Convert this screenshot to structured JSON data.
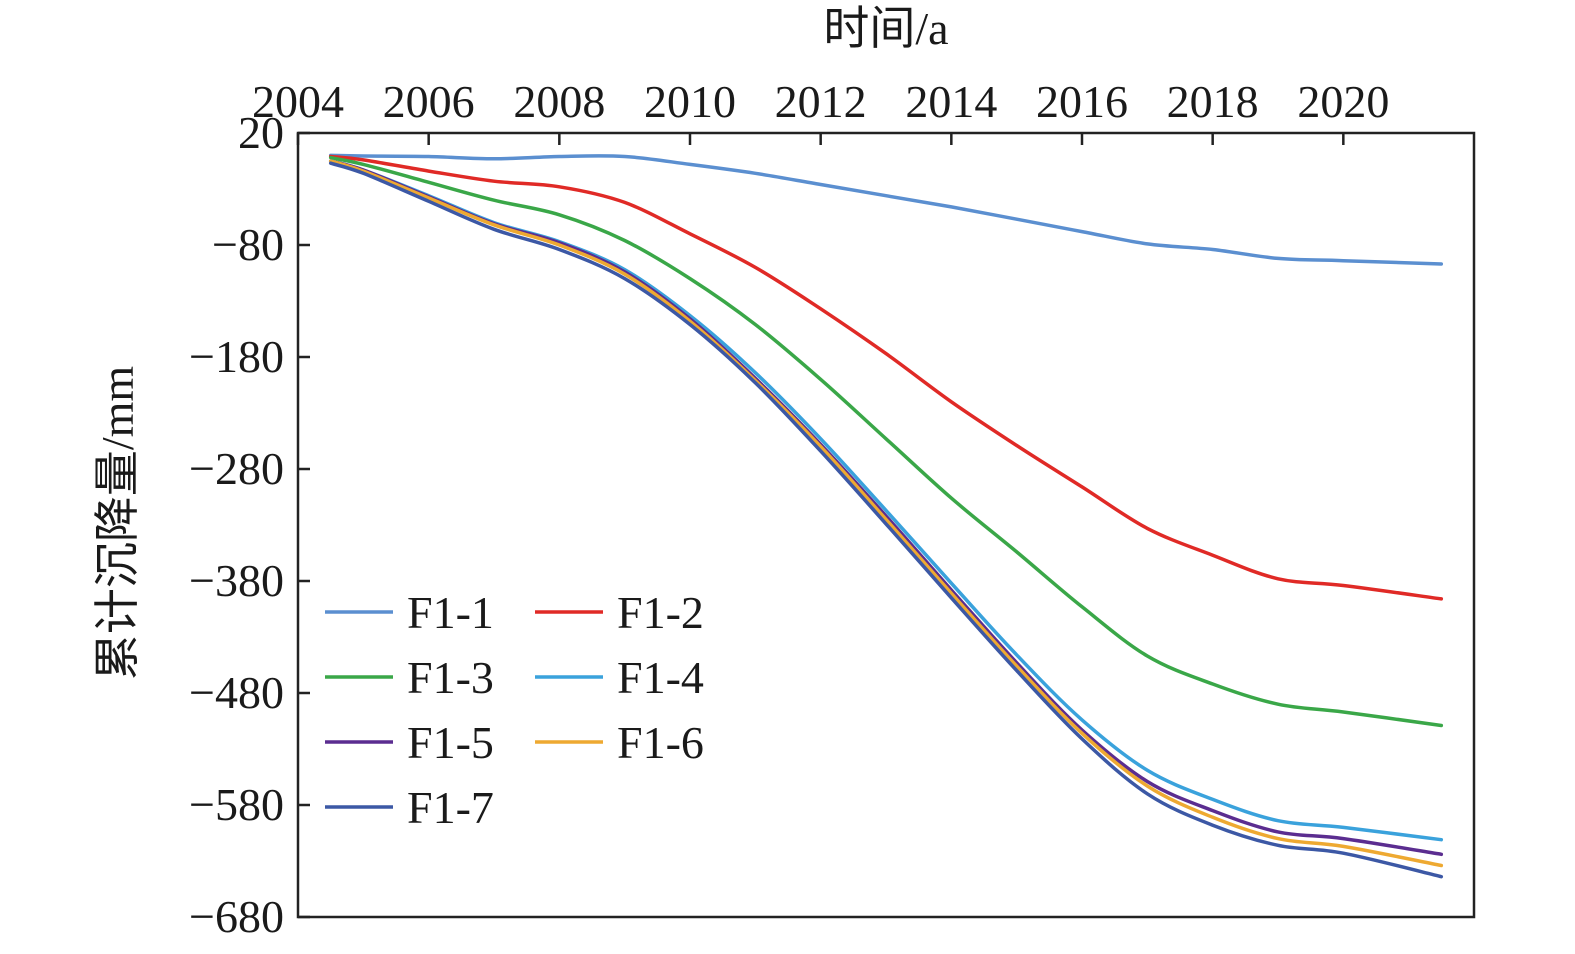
{
  "chart_data": {
    "type": "line",
    "xlabel": "时间/a",
    "ylabel": "累计沉降量/mm",
    "xlim": [
      2004,
      2022
    ],
    "ylim": [
      -680,
      20
    ],
    "x_ticks": [
      "2004",
      "2006",
      "2008",
      "2010",
      "2012",
      "2014",
      "2016",
      "2018",
      "2020"
    ],
    "y_ticks": [
      "20",
      "−80",
      "−180",
      "−280",
      "−380",
      "−480",
      "−580",
      "−680"
    ],
    "x_axis_position": "top",
    "grid": false,
    "legend_position": "bottom-left",
    "x": [
      2004.5,
      2005,
      2006,
      2007,
      2008,
      2009,
      2010,
      2011,
      2012,
      2013,
      2014,
      2015,
      2016,
      2017,
      2018,
      2019,
      2020,
      2021.5
    ],
    "series": [
      {
        "name": "F1-1",
        "color": "#5b8fd0",
        "values": [
          0,
          -0.5,
          -1,
          -3,
          -1,
          -1,
          -8,
          -16,
          -26,
          -36,
          -46,
          -57,
          -68,
          -79,
          -84,
          -92,
          -94,
          -97
        ]
      },
      {
        "name": "F1-2",
        "color": "#e02a26",
        "values": [
          -1,
          -4,
          -14,
          -23,
          -28,
          -42,
          -70,
          -100,
          -137,
          -177,
          -220,
          -259,
          -296,
          -333,
          -357,
          -378,
          -384,
          -396
        ]
      },
      {
        "name": "F1-3",
        "color": "#3aa748",
        "values": [
          -2,
          -8,
          -24,
          -40,
          -53,
          -76,
          -110,
          -151,
          -200,
          -253,
          -306,
          -354,
          -403,
          -447,
          -472,
          -490,
          -497,
          -509
        ]
      },
      {
        "name": "F1-4",
        "color": "#3aa2dc",
        "values": [
          -5,
          -13,
          -36,
          -60,
          -77,
          -102,
          -143,
          -194,
          -253,
          -317,
          -382,
          -446,
          -504,
          -549,
          -575,
          -594,
          -600,
          -611
        ]
      },
      {
        "name": "F1-5",
        "color": "#5b2d90",
        "values": [
          -5,
          -13,
          -37,
          -61,
          -78,
          -104,
          -146,
          -199,
          -258,
          -322,
          -388,
          -453,
          -513,
          -559,
          -585,
          -604,
          -610,
          -624
        ]
      },
      {
        "name": "F1-6",
        "color": "#eea931",
        "values": [
          -5,
          -14,
          -38,
          -62,
          -80,
          -106,
          -148,
          -201,
          -260,
          -325,
          -391,
          -456,
          -516,
          -563,
          -591,
          -610,
          -617,
          -634
        ]
      },
      {
        "name": "F1-7",
        "color": "#3c58a5",
        "values": [
          -7,
          -16,
          -41,
          -66,
          -84,
          -110,
          -151,
          -203,
          -264,
          -329,
          -395,
          -460,
          -521,
          -570,
          -598,
          -616,
          -623,
          -644
        ]
      }
    ]
  }
}
